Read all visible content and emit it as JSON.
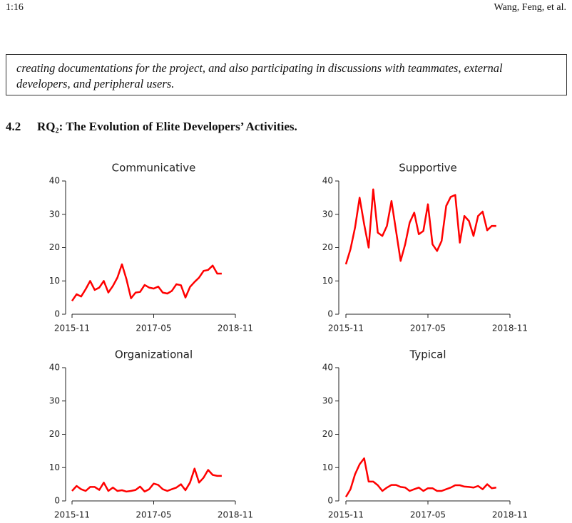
{
  "header": {
    "page": "1:16",
    "authors": "Wang, Feng, et al."
  },
  "box_text": "creating documentations for the project, and also participating in discussions with teammates, external developers, and peripheral users.",
  "section": {
    "number": "4.2",
    "title": "RQ₂: The Evolution of Elite Developers’ Activities."
  },
  "chart_data": [
    {
      "type": "line",
      "title": "Communicative",
      "color": "#ff0000",
      "x": [
        "2015-11",
        "2015-12",
        "2016-01",
        "2016-02",
        "2016-03",
        "2016-04",
        "2016-05",
        "2016-06",
        "2016-07",
        "2016-08",
        "2016-09",
        "2016-10",
        "2016-11",
        "2016-12",
        "2017-01",
        "2017-02",
        "2017-03",
        "2017-04",
        "2017-05",
        "2017-06",
        "2017-07",
        "2017-08",
        "2017-09",
        "2017-10",
        "2017-11",
        "2017-12",
        "2018-01",
        "2018-02",
        "2018-03",
        "2018-04",
        "2018-05",
        "2018-06",
        "2018-07",
        "2018-08"
      ],
      "values": [
        4,
        6,
        5.3,
        7.5,
        10,
        7.3,
        8,
        10,
        6.5,
        8.5,
        11,
        15,
        10.5,
        4.8,
        6.5,
        6.7,
        8.8,
        8,
        7.7,
        8.3,
        6.5,
        6.2,
        7,
        9,
        8.7,
        5,
        8.2,
        9.7,
        11,
        13,
        13.3,
        14.6,
        12.2,
        12.2
      ],
      "xlim": [
        "2015-11",
        "2018-11"
      ],
      "xticks": [
        "2015-11",
        "2017-05",
        "2018-11"
      ],
      "ylim": [
        0,
        40
      ],
      "yticks": [
        0,
        10,
        20,
        30,
        40
      ]
    },
    {
      "type": "line",
      "title": "Supportive",
      "color": "#ff0000",
      "x": [
        "2015-11",
        "2015-12",
        "2016-01",
        "2016-02",
        "2016-03",
        "2016-04",
        "2016-05",
        "2016-06",
        "2016-07",
        "2016-08",
        "2016-09",
        "2016-10",
        "2016-11",
        "2016-12",
        "2017-01",
        "2017-02",
        "2017-03",
        "2017-04",
        "2017-05",
        "2017-06",
        "2017-07",
        "2017-08",
        "2017-09",
        "2017-10",
        "2017-11",
        "2017-12",
        "2018-01",
        "2018-02",
        "2018-03",
        "2018-04",
        "2018-05",
        "2018-06",
        "2018-07",
        "2018-08"
      ],
      "values": [
        15,
        19.5,
        26,
        35,
        27,
        20,
        37.5,
        24.5,
        23.5,
        26.5,
        34,
        25,
        16,
        21,
        27.5,
        30.5,
        24,
        25,
        33,
        21,
        19,
        22,
        32.5,
        35.2,
        35.8,
        21.5,
        29.5,
        28,
        23.5,
        29.5,
        30.8,
        25.2,
        26.5,
        26.5
      ],
      "xlim": [
        "2015-11",
        "2018-11"
      ],
      "xticks": [
        "2015-11",
        "2017-05",
        "2018-11"
      ],
      "ylim": [
        0,
        40
      ],
      "yticks": [
        0,
        10,
        20,
        30,
        40
      ]
    },
    {
      "type": "line",
      "title": "Organizational",
      "color": "#ff0000",
      "x": [
        "2015-11",
        "2015-12",
        "2016-01",
        "2016-02",
        "2016-03",
        "2016-04",
        "2016-05",
        "2016-06",
        "2016-07",
        "2016-08",
        "2016-09",
        "2016-10",
        "2016-11",
        "2016-12",
        "2017-01",
        "2017-02",
        "2017-03",
        "2017-04",
        "2017-05",
        "2017-06",
        "2017-07",
        "2017-08",
        "2017-09",
        "2017-10",
        "2017-11",
        "2017-12",
        "2018-01",
        "2018-02",
        "2018-03",
        "2018-04",
        "2018-05",
        "2018-06",
        "2018-07",
        "2018-08"
      ],
      "values": [
        3,
        4.5,
        3.5,
        3,
        4.2,
        4.2,
        3.3,
        5.5,
        3,
        4,
        3,
        3.2,
        2.8,
        3,
        3.3,
        4.3,
        2.8,
        3.5,
        5.2,
        4.8,
        3.5,
        3,
        3.5,
        4,
        5,
        3.2,
        5.5,
        9.7,
        5.5,
        7,
        9.3,
        7.8,
        7.5,
        7.5
      ],
      "xlim": [
        "2015-11",
        "2018-11"
      ],
      "xticks": [
        "2015-11",
        "2017-05",
        "2018-11"
      ],
      "ylim": [
        0,
        40
      ],
      "yticks": [
        0,
        10,
        20,
        30,
        40
      ]
    },
    {
      "type": "line",
      "title": "Typical",
      "color": "#ff0000",
      "x": [
        "2015-11",
        "2015-12",
        "2016-01",
        "2016-02",
        "2016-03",
        "2016-04",
        "2016-05",
        "2016-06",
        "2016-07",
        "2016-08",
        "2016-09",
        "2016-10",
        "2016-11",
        "2016-12",
        "2017-01",
        "2017-02",
        "2017-03",
        "2017-04",
        "2017-05",
        "2017-06",
        "2017-07",
        "2017-08",
        "2017-09",
        "2017-10",
        "2017-11",
        "2017-12",
        "2018-01",
        "2018-02",
        "2018-03",
        "2018-04",
        "2018-05",
        "2018-06",
        "2018-07",
        "2018-08"
      ],
      "values": [
        1.2,
        3.5,
        8,
        11,
        12.8,
        5.8,
        5.8,
        4.7,
        3,
        4,
        4.8,
        4.8,
        4.2,
        4,
        3,
        3.5,
        4,
        3,
        3.8,
        3.8,
        3,
        3,
        3.5,
        4,
        4.7,
        4.7,
        4.3,
        4.2,
        4,
        4.5,
        3.5,
        5,
        3.8,
        4
      ],
      "xlim": [
        "2015-11",
        "2018-11"
      ],
      "xticks": [
        "2015-11",
        "2017-05",
        "2018-11"
      ],
      "ylim": [
        0,
        40
      ],
      "yticks": [
        0,
        10,
        20,
        30,
        40
      ]
    }
  ]
}
